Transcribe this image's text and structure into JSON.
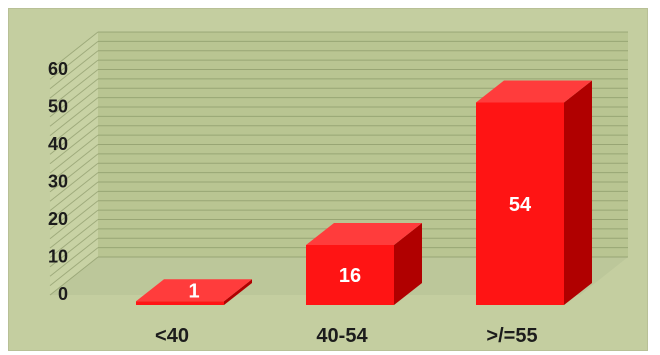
{
  "chart_data": {
    "type": "bar",
    "categories": [
      "<40",
      "40-54",
      ">/=55"
    ],
    "values": [
      1,
      16,
      54
    ],
    "ylim": [
      0,
      60
    ],
    "yticks": [
      0,
      10,
      20,
      30,
      40,
      50,
      60
    ],
    "grid": true,
    "three_d": true,
    "colors": {
      "bar_front": "#ff1414",
      "bar_top": "#ff3c3c",
      "bar_side": "#b00000",
      "plot_background": "#c4cea0",
      "back_wall": "#b9c592",
      "side_wall": "#c8d2a4",
      "floor": "#bcc79a",
      "gridline": "#7e8c5c"
    }
  }
}
